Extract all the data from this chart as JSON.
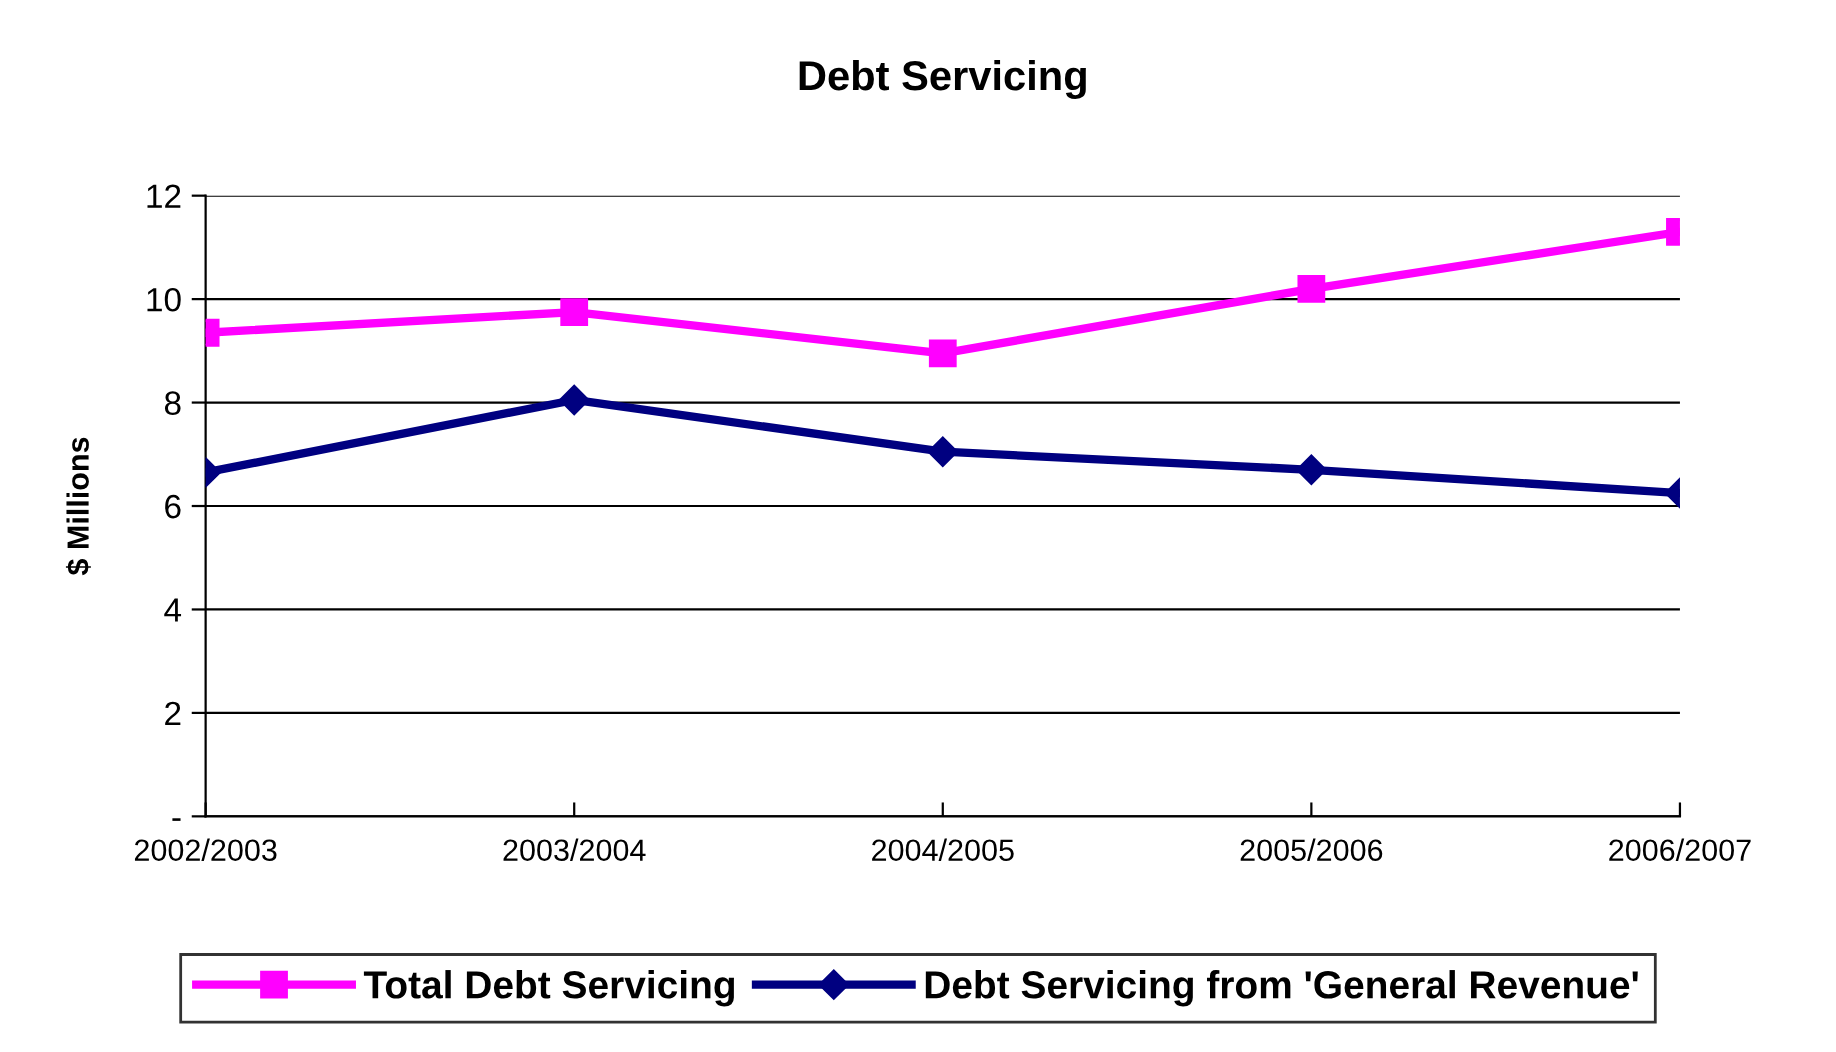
{
  "chart_data": {
    "type": "line",
    "title": "Debt Servicing",
    "ylabel": "$ Millions",
    "categories": [
      "2002/2003",
      "2003/2004",
      "2004/2005",
      "2005/2006",
      "2006/2007"
    ],
    "series": [
      {
        "name": "Total Debt Servicing",
        "color": "#ff00ff",
        "marker": "square",
        "values": [
          9.35,
          9.75,
          8.95,
          10.2,
          11.3
        ]
      },
      {
        "name": "Debt Servicing from 'General Revenue'",
        "color": "#000080",
        "marker": "diamond",
        "values": [
          6.65,
          8.05,
          7.05,
          6.7,
          6.25
        ]
      }
    ],
    "ylim": [
      0,
      12
    ],
    "yticks": [
      {
        "value": 0,
        "label": "-"
      },
      2,
      4,
      6,
      8,
      10,
      12
    ],
    "grid": "y",
    "legend": "bottom",
    "line_style": "solid"
  }
}
